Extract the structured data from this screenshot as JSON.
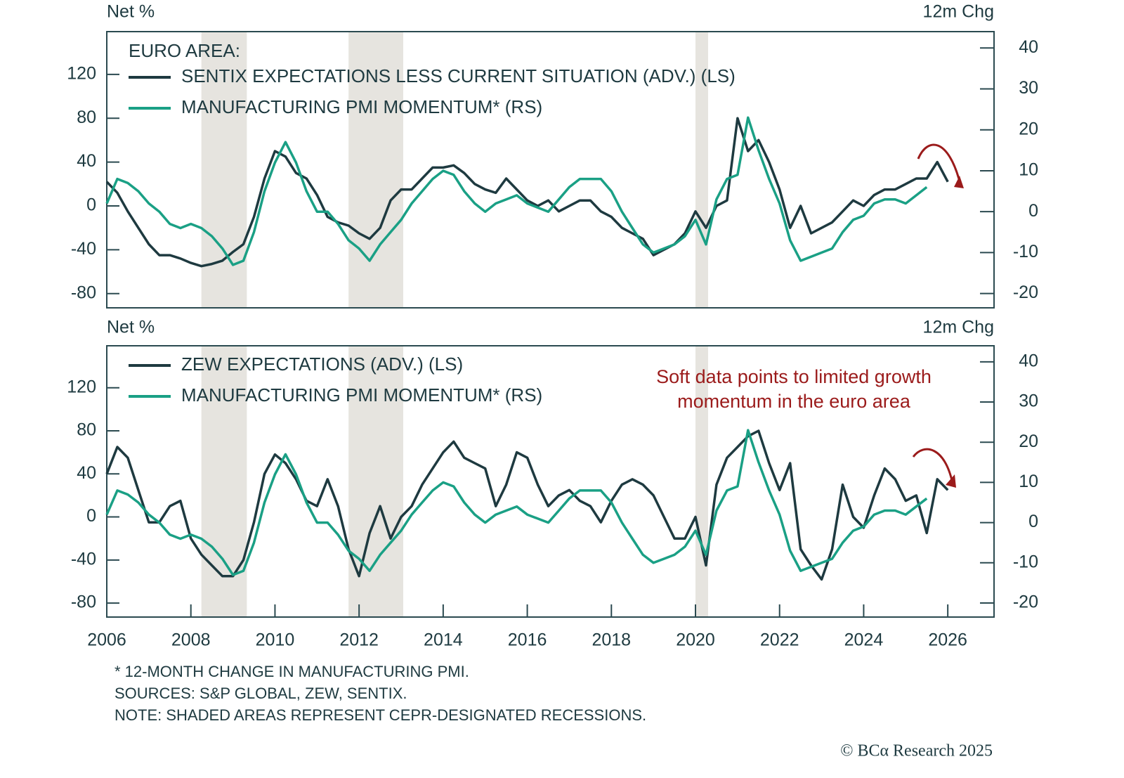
{
  "chart_data": [
    {
      "type": "line",
      "legend_title": "EURO AREA:",
      "ylabel": "Net %",
      "y2label": "12m Chg",
      "x": [
        2006,
        2006.25,
        2006.5,
        2006.75,
        2007,
        2007.25,
        2007.5,
        2007.75,
        2008,
        2008.25,
        2008.5,
        2008.75,
        2009,
        2009.25,
        2009.5,
        2009.75,
        2010,
        2010.25,
        2010.5,
        2010.75,
        2011,
        2011.25,
        2011.5,
        2011.75,
        2012,
        2012.25,
        2012.5,
        2012.75,
        2013,
        2013.25,
        2013.5,
        2013.75,
        2014,
        2014.25,
        2014.5,
        2014.75,
        2015,
        2015.25,
        2015.5,
        2015.75,
        2016,
        2016.25,
        2016.5,
        2016.75,
        2017,
        2017.25,
        2017.5,
        2017.75,
        2018,
        2018.25,
        2018.5,
        2018.75,
        2019,
        2019.25,
        2019.5,
        2019.75,
        2020,
        2020.25,
        2020.5,
        2020.75,
        2021,
        2021.25,
        2021.5,
        2021.75,
        2022,
        2022.25,
        2022.5,
        2022.75,
        2023,
        2023.25,
        2023.5,
        2023.75,
        2024,
        2024.25,
        2024.5,
        2024.75,
        2025,
        2025.25,
        2025.5,
        2025.75,
        2026
      ],
      "xlim": [
        2006,
        2027.1
      ],
      "ylim": [
        -93,
        159
      ],
      "yticks": [
        -80,
        -40,
        0,
        40,
        80,
        120
      ],
      "y2lim": [
        -23.5,
        44
      ],
      "y2ticks": [
        -20,
        -10,
        0,
        10,
        20,
        30,
        40
      ],
      "recessions": [
        [
          2008.25,
          2009.33
        ],
        [
          2011.75,
          2013.05
        ],
        [
          2020.0,
          2020.3
        ]
      ],
      "recession_color": "#e6e4df",
      "series": [
        {
          "name": "SENTIX EXPECTATIONS LESS CURRENT SITUATION (ADV.) (LS)",
          "color": "#1e3a40",
          "values": [
            22,
            12,
            -5,
            -20,
            -35,
            -45,
            -45,
            -48,
            -52,
            -55,
            -53,
            -50,
            -42,
            -35,
            -10,
            25,
            50,
            45,
            30,
            25,
            10,
            -10,
            -15,
            -18,
            -25,
            -30,
            -20,
            5,
            15,
            15,
            25,
            35,
            35,
            37,
            30,
            20,
            15,
            12,
            25,
            15,
            5,
            0,
            5,
            -5,
            0,
            5,
            5,
            -5,
            -10,
            -20,
            -25,
            -30,
            -45,
            -40,
            -35,
            -25,
            -5,
            -20,
            0,
            5,
            80,
            50,
            60,
            40,
            15,
            -20,
            0,
            -25,
            -20,
            -15,
            -5,
            5,
            0,
            10,
            15,
            15,
            20,
            25,
            25,
            40,
            22
          ]
        },
        {
          "name": "MANUFACTURING PMI MOMENTUM* (RS)",
          "color": "#1aa085",
          "axis": "y2",
          "values": [
            2,
            8,
            7,
            5,
            2,
            0,
            -3,
            -4,
            -3,
            -4,
            -6,
            -9,
            -13,
            -12,
            -5,
            5,
            12,
            17,
            12,
            5,
            0,
            0,
            -3,
            -7,
            -9,
            -12,
            -8,
            -5,
            -2,
            2,
            5,
            8,
            10,
            9,
            5,
            2,
            0,
            2,
            3,
            4,
            2,
            1,
            0,
            3,
            6,
            8,
            8,
            8,
            5,
            0,
            -4,
            -8,
            -10,
            -9,
            -8,
            -6,
            -2,
            -8,
            3,
            8,
            9,
            23,
            15,
            8,
            2,
            -7,
            -12,
            -11,
            -10,
            -9,
            -5,
            -2,
            -1,
            2,
            3,
            3,
            2,
            4,
            6,
            null,
            null
          ]
        }
      ]
    },
    {
      "type": "line",
      "ylabel": "Net %",
      "y2label": "12m Chg",
      "annotation": [
        "Soft data points to limited growth",
        "momentum in the euro area"
      ],
      "annotation_color": "#9b1b1b",
      "x": [
        2006,
        2006.25,
        2006.5,
        2006.75,
        2007,
        2007.25,
        2007.5,
        2007.75,
        2008,
        2008.25,
        2008.5,
        2008.75,
        2009,
        2009.25,
        2009.5,
        2009.75,
        2010,
        2010.25,
        2010.5,
        2010.75,
        2011,
        2011.25,
        2011.5,
        2011.75,
        2012,
        2012.25,
        2012.5,
        2012.75,
        2013,
        2013.25,
        2013.5,
        2013.75,
        2014,
        2014.25,
        2014.5,
        2014.75,
        2015,
        2015.25,
        2015.5,
        2015.75,
        2016,
        2016.25,
        2016.5,
        2016.75,
        2017,
        2017.25,
        2017.5,
        2017.75,
        2018,
        2018.25,
        2018.5,
        2018.75,
        2019,
        2019.25,
        2019.5,
        2019.75,
        2020,
        2020.25,
        2020.5,
        2020.75,
        2021,
        2021.25,
        2021.5,
        2021.75,
        2022,
        2022.25,
        2022.5,
        2022.75,
        2023,
        2023.25,
        2023.5,
        2023.75,
        2024,
        2024.25,
        2024.5,
        2024.75,
        2025,
        2025.25,
        2025.5,
        2025.75,
        2026
      ],
      "xlim": [
        2006,
        2027.1
      ],
      "xticks": [
        2006,
        2008,
        2010,
        2012,
        2014,
        2016,
        2018,
        2020,
        2022,
        2024,
        2026
      ],
      "ylim": [
        -93,
        159
      ],
      "yticks": [
        -80,
        -40,
        0,
        40,
        80,
        120
      ],
      "y2lim": [
        -23.5,
        44
      ],
      "y2ticks": [
        -20,
        -10,
        0,
        10,
        20,
        30,
        40
      ],
      "recessions": [
        [
          2008.25,
          2009.33
        ],
        [
          2011.75,
          2013.05
        ],
        [
          2020.0,
          2020.3
        ]
      ],
      "recession_color": "#e6e4df",
      "series": [
        {
          "name": "ZEW EXPECTATIONS (ADV.) (LS)",
          "color": "#1e3a40",
          "values": [
            40,
            65,
            55,
            25,
            -5,
            -5,
            10,
            15,
            -20,
            -35,
            -45,
            -55,
            -55,
            -40,
            -5,
            40,
            58,
            50,
            35,
            15,
            10,
            35,
            10,
            -30,
            -55,
            -15,
            10,
            -20,
            0,
            10,
            30,
            45,
            60,
            70,
            55,
            50,
            45,
            10,
            30,
            60,
            55,
            30,
            10,
            20,
            25,
            15,
            10,
            -5,
            15,
            30,
            35,
            30,
            20,
            0,
            -20,
            -20,
            0,
            -45,
            30,
            55,
            65,
            75,
            80,
            50,
            25,
            50,
            -30,
            -45,
            -58,
            -30,
            30,
            0,
            -10,
            20,
            45,
            35,
            15,
            20,
            -15,
            35,
            25
          ]
        },
        {
          "name": "MANUFACTURING PMI MOMENTUM* (RS)",
          "color": "#1aa085",
          "axis": "y2",
          "values": [
            2,
            8,
            7,
            5,
            2,
            0,
            -3,
            -4,
            -3,
            -4,
            -6,
            -9,
            -13,
            -12,
            -5,
            5,
            12,
            17,
            12,
            5,
            0,
            0,
            -3,
            -7,
            -9,
            -12,
            -8,
            -5,
            -2,
            2,
            5,
            8,
            10,
            9,
            5,
            2,
            0,
            2,
            3,
            4,
            2,
            1,
            0,
            3,
            6,
            8,
            8,
            8,
            5,
            0,
            -4,
            -8,
            -10,
            -9,
            -8,
            -6,
            -2,
            -8,
            3,
            8,
            9,
            23,
            15,
            8,
            2,
            -7,
            -12,
            -11,
            -10,
            -9,
            -5,
            -2,
            -1,
            2,
            3,
            3,
            2,
            4,
            6,
            null,
            null
          ]
        }
      ]
    }
  ],
  "footnotes": [
    "* 12-MONTH CHANGE IN MANUFACTURING PMI.",
    "SOURCES: S&P GLOBAL, ZEW, SENTIX.",
    "NOTE: SHADED AREAS REPRESENT CEPR-DESIGNATED RECESSIONS."
  ],
  "credit": "© BCα Research 2025"
}
